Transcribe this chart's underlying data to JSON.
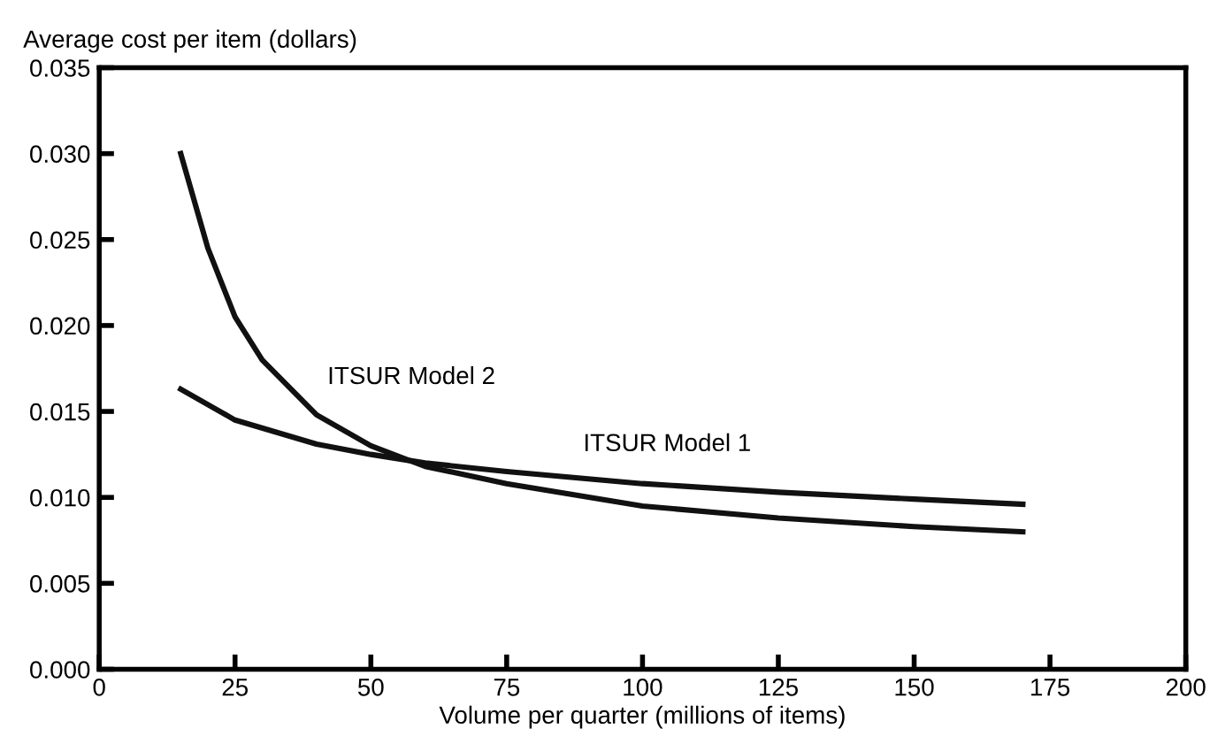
{
  "chart_data": {
    "type": "line",
    "ylabel": "Average cost per item (dollars)",
    "xlabel": "Volume per quarter (millions of items)",
    "xlim": [
      0,
      200
    ],
    "xticks": [
      0,
      25,
      50,
      75,
      100,
      125,
      150,
      175,
      200
    ],
    "ylim": [
      0,
      0.035
    ],
    "yticks": [
      {
        "value": 0,
        "label": "0.000"
      },
      {
        "value": 0.005,
        "label": "0.005"
      },
      {
        "value": 0.01,
        "label": "0.010"
      },
      {
        "value": 0.015,
        "label": "0.015"
      },
      {
        "value": 0.02,
        "label": "0.020"
      },
      {
        "value": 0.025,
        "label": "0.025"
      },
      {
        "value": 0.03,
        "label": "0.030"
      },
      {
        "value": 0.035,
        "label": "0.035"
      }
    ],
    "grid": false,
    "legend": false,
    "marker": "none",
    "line_style": "solid",
    "series": [
      {
        "name": "ITSUR Model 1",
        "color": "#111111",
        "x": [
          15,
          25,
          40,
          50,
          60,
          75,
          100,
          125,
          150,
          170
        ],
        "values": [
          0.0163,
          0.0145,
          0.0131,
          0.0125,
          0.012,
          0.0115,
          0.0108,
          0.0103,
          0.0099,
          0.0096
        ]
      },
      {
        "name": "ITSUR Model 2",
        "color": "#111111",
        "x": [
          15,
          20,
          25,
          30,
          40,
          50,
          60,
          75,
          100,
          125,
          150,
          170
        ],
        "values": [
          0.03,
          0.0245,
          0.0205,
          0.018,
          0.0148,
          0.013,
          0.0118,
          0.0108,
          0.0095,
          0.0088,
          0.0083,
          0.008
        ]
      }
    ]
  }
}
